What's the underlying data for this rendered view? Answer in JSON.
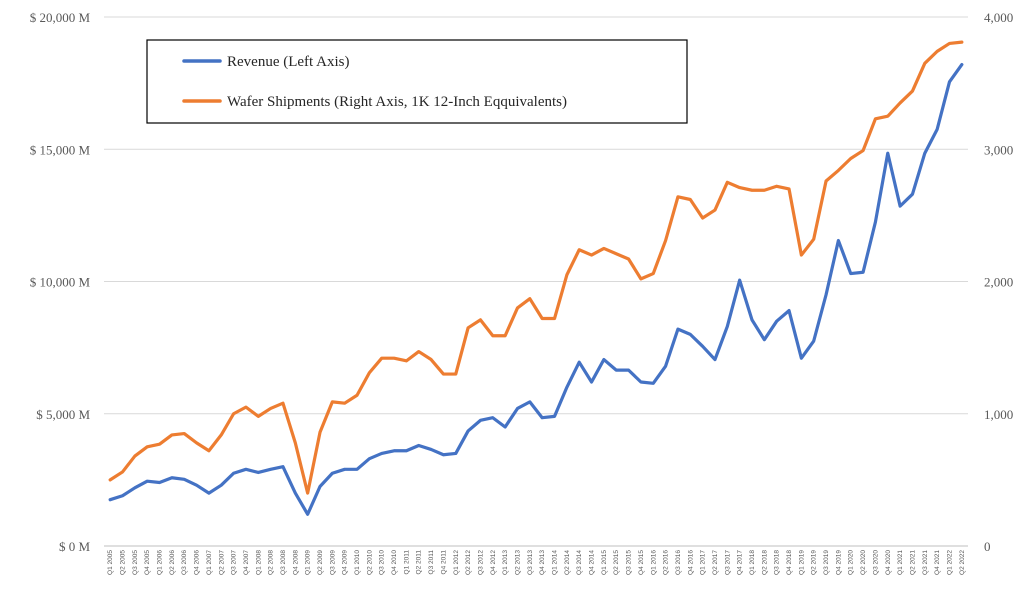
{
  "chart_data": {
    "type": "line",
    "title": "",
    "xlabel": "",
    "ylabel": "",
    "y2label": "",
    "x": [
      "Q1 2005",
      "Q2 2005",
      "Q3 2005",
      "Q4 2005",
      "Q1 2006",
      "Q2 2006",
      "Q3 2006",
      "Q4 2006",
      "Q1 2007",
      "Q2 2007",
      "Q3 2007",
      "Q4 2007",
      "Q1 2008",
      "Q2 2008",
      "Q3 2008",
      "Q4 2008",
      "Q1 2009",
      "Q2 2009",
      "Q3 2009",
      "Q4 2009",
      "Q1 2010",
      "Q2 2010",
      "Q3 2010",
      "Q4 2010",
      "Q1 2011",
      "Q2 2011",
      "Q3 2011",
      "Q4 2011",
      "Q1 2012",
      "Q2 2012",
      "Q3 2012",
      "Q4 2012",
      "Q1 2013",
      "Q2 2013",
      "Q3 2013",
      "Q4 2013",
      "Q1 2014",
      "Q2 2014",
      "Q3 2014",
      "Q4 2014",
      "Q1 2015",
      "Q2 2015",
      "Q3 2015",
      "Q4 2015",
      "Q1 2016",
      "Q2 2016",
      "Q3 2016",
      "Q4 2016",
      "Q1 2017",
      "Q2 2017",
      "Q3 2017",
      "Q4 2017",
      "Q1 2018",
      "Q2 2018",
      "Q3 2018",
      "Q4 2018",
      "Q1 2019",
      "Q2 2019",
      "Q3 2019",
      "Q4 2019",
      "Q1 2020",
      "Q2 2020",
      "Q3 2020",
      "Q4 2020",
      "Q1 2021",
      "Q2 2021",
      "Q3 2021",
      "Q4 2021",
      "Q1 2022",
      "Q2 2022"
    ],
    "series": [
      {
        "name": "Revenue (Left Axis)",
        "axis": "left",
        "color": "#4472C4",
        "values": [
          1750,
          1900,
          2200,
          2450,
          2400,
          2580,
          2520,
          2300,
          2000,
          2300,
          2750,
          2900,
          2780,
          2900,
          3000,
          2000,
          1200,
          2250,
          2750,
          2900,
          2900,
          3300,
          3500,
          3600,
          3600,
          3800,
          3650,
          3450,
          3500,
          4350,
          4750,
          4850,
          4500,
          5200,
          5450,
          4850,
          4900,
          6000,
          6950,
          6200,
          7050,
          6650,
          6650,
          6200,
          6150,
          6800,
          8200,
          8000,
          7550,
          7050,
          8300,
          10050,
          8550,
          7800,
          8500,
          8900,
          7100,
          7750,
          9500,
          11550,
          10300,
          10350,
          12250,
          14850,
          12850,
          13300,
          14850,
          15750,
          17550,
          18200
        ]
      },
      {
        "name": "Wafer Shipments (Right Axis, 1K 12-Inch Eqquivalents)",
        "axis": "right",
        "color": "#ED7D31",
        "values": [
          500,
          560,
          680,
          750,
          770,
          840,
          850,
          780,
          720,
          840,
          1000,
          1050,
          980,
          1040,
          1080,
          780,
          400,
          860,
          1090,
          1080,
          1140,
          1310,
          1420,
          1420,
          1400,
          1470,
          1410,
          1300,
          1300,
          1650,
          1710,
          1590,
          1590,
          1800,
          1870,
          1720,
          1720,
          2050,
          2240,
          2200,
          2250,
          2210,
          2170,
          2020,
          2060,
          2310,
          2640,
          2620,
          2480,
          2540,
          2750,
          2710,
          2690,
          2690,
          2720,
          2700,
          2200,
          2320,
          2760,
          2840,
          2930,
          2990,
          3230,
          3250,
          3350,
          3440,
          3650,
          3740,
          3800,
          3810
        ]
      }
    ],
    "ylim": [
      0,
      20000
    ],
    "y2lim": [
      0,
      4000
    ],
    "yticks": [
      "$ 0 M",
      "$ 5,000 M",
      "$ 10,000 M",
      "$ 15,000 M",
      "$ 20,000 M"
    ],
    "y2ticks": [
      "0",
      "1,000",
      "2,000",
      "3,000",
      "4,000"
    ],
    "grid": true,
    "legend": "top-left"
  }
}
